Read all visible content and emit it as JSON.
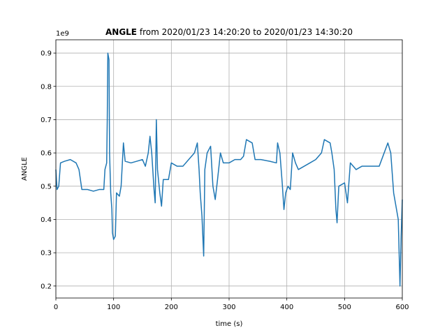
{
  "chart_data": {
    "type": "line",
    "title": [
      "ANGLE",
      "from 2020/01/23 14:20:20 to 2020/01/23 14:30:20"
    ],
    "offset_label": "1e9",
    "x_label": "time (s)",
    "y_label": "ANGLE",
    "xlim": [
      0,
      600
    ],
    "xticks": [
      0,
      100,
      200,
      300,
      400,
      500,
      600
    ],
    "ylim": [
      0.164,
      0.94
    ],
    "yticks": [
      0.2,
      0.3,
      0.4,
      0.5,
      0.6,
      0.7,
      0.8,
      0.9
    ],
    "grid": true,
    "x": [
      0,
      2,
      5,
      8,
      15,
      25,
      35,
      40,
      45,
      55,
      65,
      75,
      83,
      85,
      88,
      89,
      90,
      92,
      93,
      95,
      97,
      98,
      100,
      103,
      105,
      110,
      113,
      117,
      120,
      130,
      140,
      150,
      155,
      160,
      163,
      166,
      170,
      172,
      174,
      176,
      180,
      183,
      186,
      195,
      200,
      210,
      220,
      230,
      240,
      245,
      248,
      250,
      253,
      256,
      258,
      262,
      268,
      272,
      276,
      280,
      285,
      290,
      300,
      310,
      320,
      325,
      330,
      340,
      345,
      355,
      370,
      382,
      384,
      388,
      392,
      395,
      398,
      402,
      406,
      410,
      415,
      420,
      430,
      440,
      450,
      460,
      465,
      475,
      478,
      482,
      485,
      487,
      490,
      500,
      505,
      510,
      520,
      530,
      545,
      560,
      575,
      580,
      585,
      590,
      593,
      596,
      598,
      600
    ],
    "series": [
      {
        "name": "ANGLE",
        "color": "#1f77b4",
        "values": [
          0.55,
          0.49,
          0.5,
          0.57,
          0.575,
          0.58,
          0.57,
          0.55,
          0.49,
          0.49,
          0.485,
          0.49,
          0.49,
          0.55,
          0.57,
          0.7,
          0.9,
          0.88,
          0.6,
          0.48,
          0.43,
          0.36,
          0.34,
          0.35,
          0.48,
          0.47,
          0.5,
          0.63,
          0.575,
          0.57,
          0.575,
          0.58,
          0.56,
          0.6,
          0.65,
          0.6,
          0.49,
          0.45,
          0.7,
          0.55,
          0.48,
          0.44,
          0.52,
          0.52,
          0.57,
          0.56,
          0.56,
          0.58,
          0.6,
          0.63,
          0.55,
          0.48,
          0.41,
          0.29,
          0.55,
          0.6,
          0.62,
          0.5,
          0.46,
          0.52,
          0.6,
          0.57,
          0.57,
          0.58,
          0.58,
          0.59,
          0.64,
          0.63,
          0.58,
          0.58,
          0.575,
          0.57,
          0.63,
          0.6,
          0.51,
          0.43,
          0.48,
          0.5,
          0.49,
          0.6,
          0.57,
          0.55,
          0.56,
          0.57,
          0.58,
          0.6,
          0.64,
          0.63,
          0.6,
          0.55,
          0.43,
          0.39,
          0.5,
          0.51,
          0.45,
          0.57,
          0.55,
          0.56,
          0.56,
          0.56,
          0.63,
          0.6,
          0.48,
          0.43,
          0.4,
          0.2,
          0.35,
          0.46
        ]
      }
    ]
  }
}
